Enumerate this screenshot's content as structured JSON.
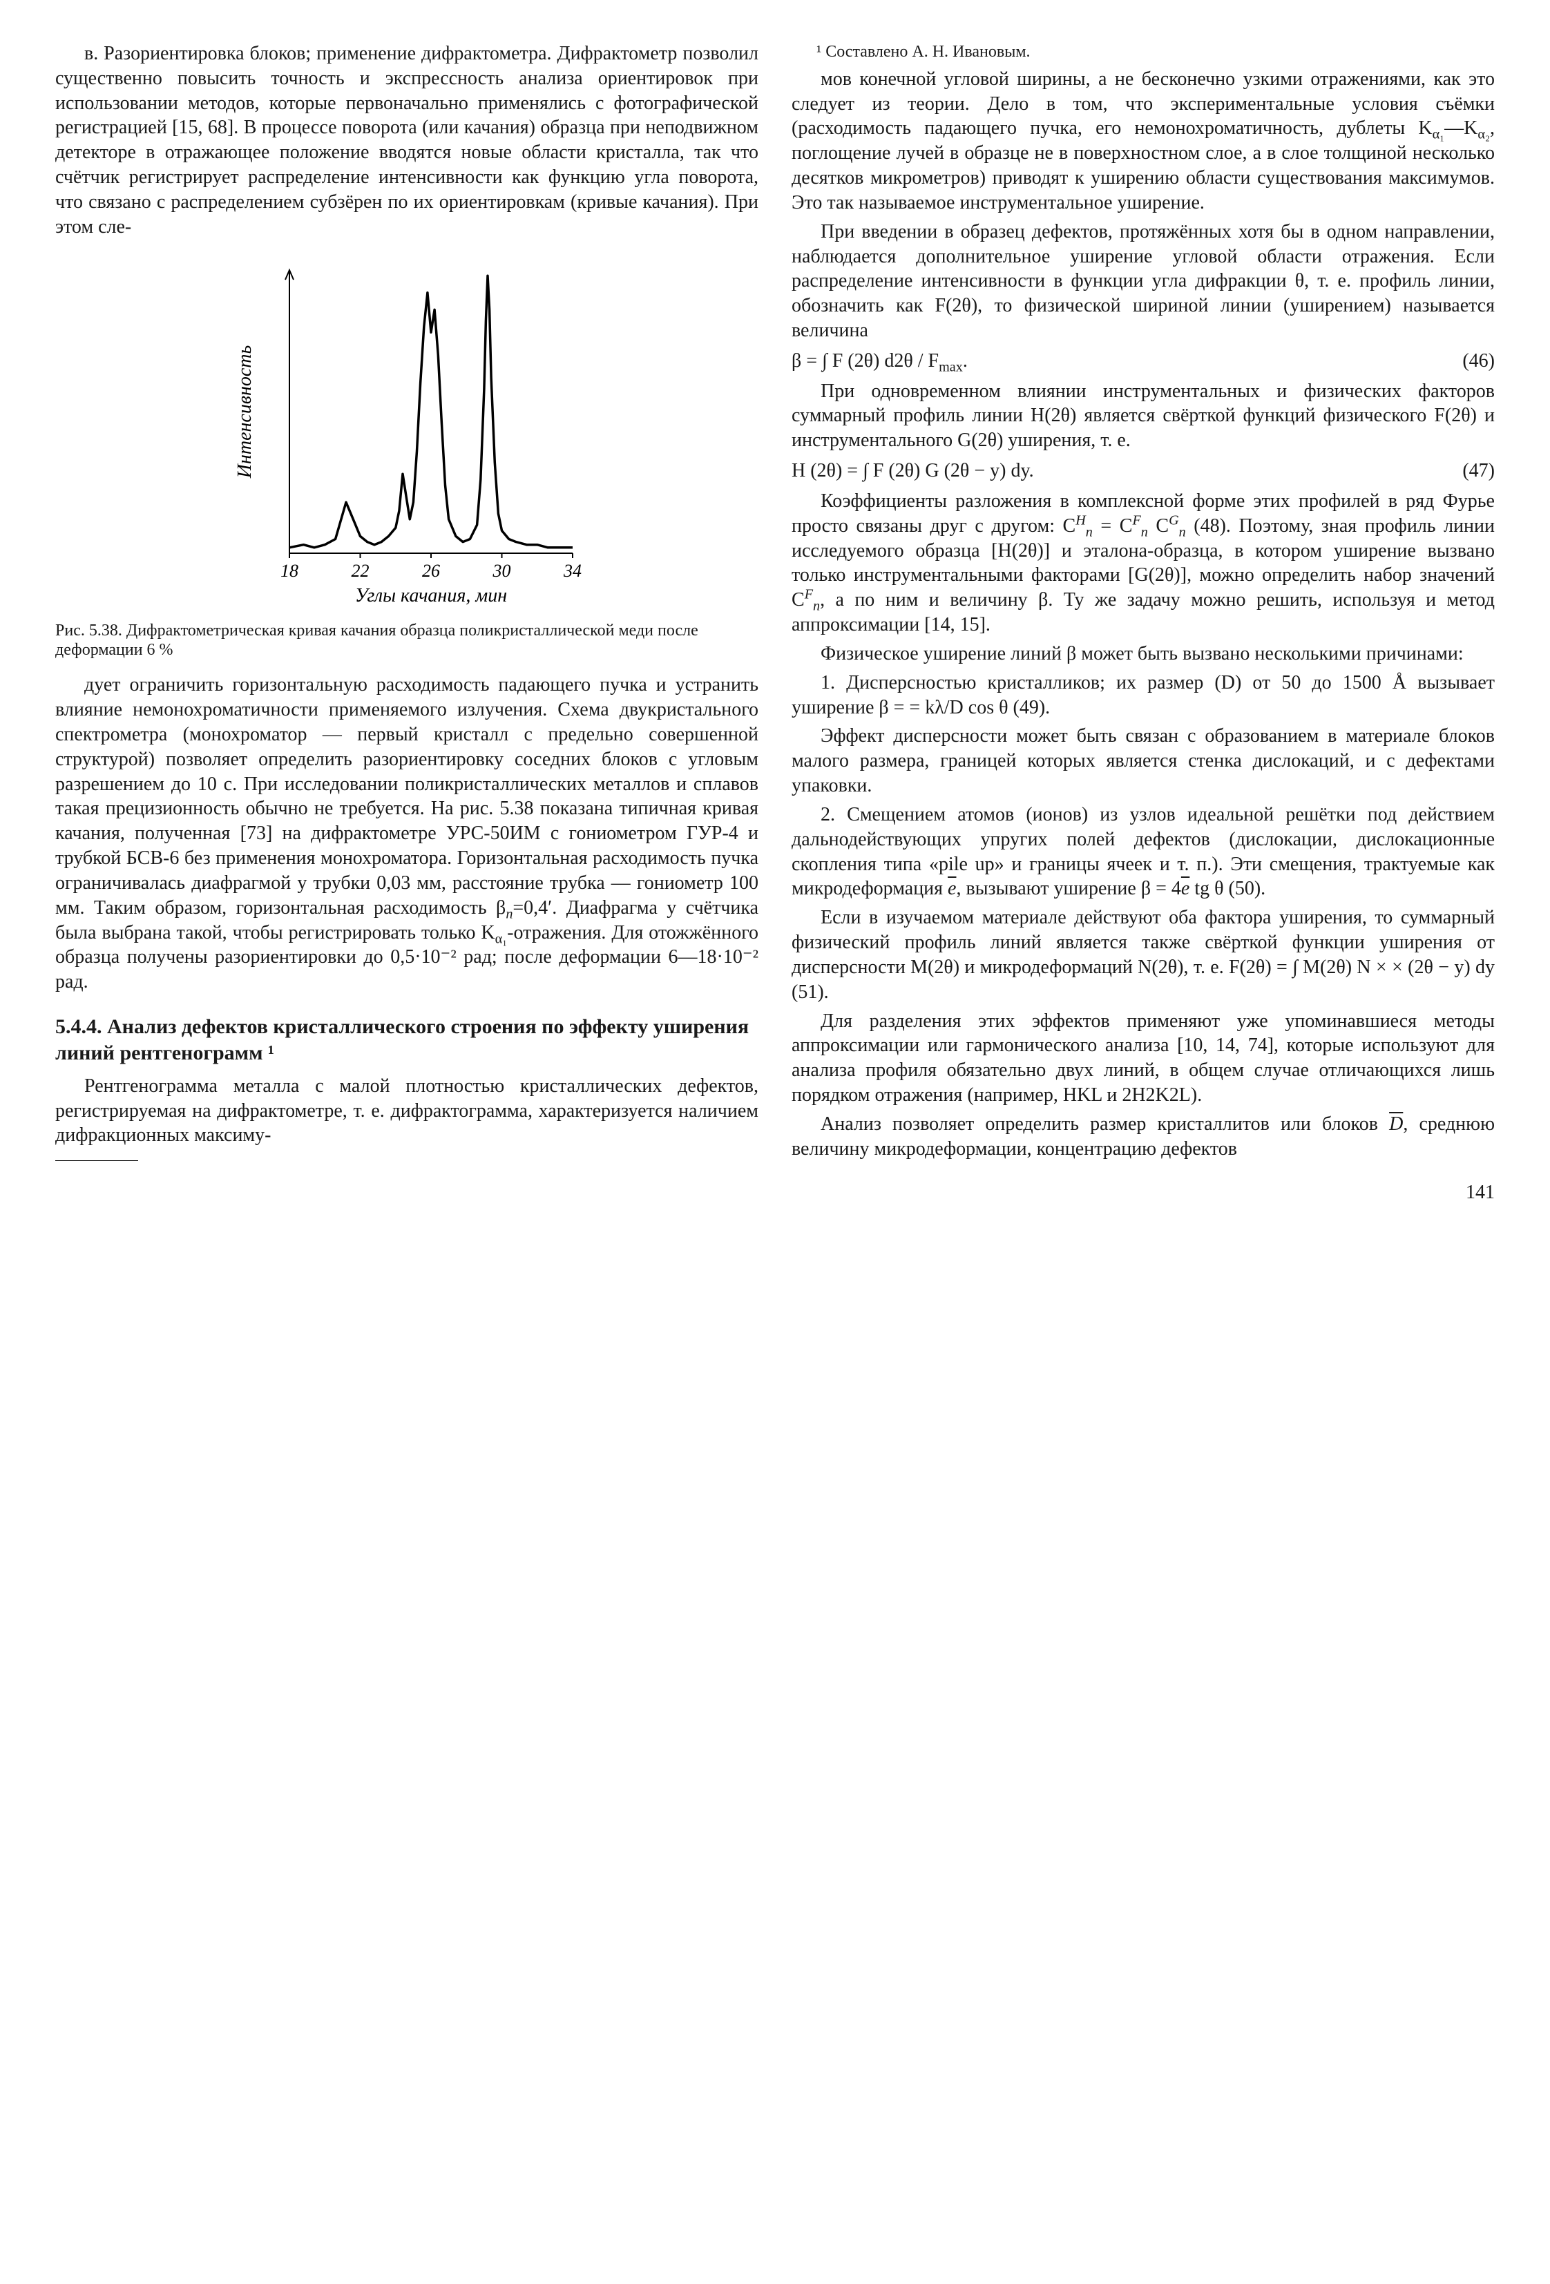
{
  "page_number": "141",
  "left_column": {
    "p1": "в. Разориентировка блоков; применение дифрактометра. Дифрактометр позволил существенно повысить точность и экспрессность анализа ориентировок при использовании методов, которые первоначально применялись с фотографической регистрацией [15, 68]. В процессе поворота (или качания) образца при неподвижном детекторе в отражающее положение вводятся новые области кристалла, так что счётчик регистрирует распределение интенсивности как функцию угла поворота, что связано с распределением субзёрен по их ориентировкам (кривые качания). При этом сле-",
    "figure": {
      "y_label": "Интенсивность",
      "x_label": "Углы качания, мин",
      "caption": "Рис. 5.38. Дифрактометрическая кривая качания образца поликристаллической меди после деформации 6 %",
      "x_ticks": [
        "18",
        "22",
        "26",
        "30",
        "34"
      ],
      "x_range": [
        18,
        34
      ],
      "y_range": [
        0,
        100
      ],
      "curve_points": [
        [
          18.0,
          2
        ],
        [
          18.8,
          3
        ],
        [
          19.4,
          2
        ],
        [
          20.0,
          3
        ],
        [
          20.6,
          5
        ],
        [
          21.2,
          18
        ],
        [
          21.6,
          12
        ],
        [
          22.0,
          6
        ],
        [
          22.4,
          4
        ],
        [
          22.8,
          3
        ],
        [
          23.2,
          4
        ],
        [
          23.6,
          6
        ],
        [
          24.0,
          9
        ],
        [
          24.2,
          15
        ],
        [
          24.4,
          28
        ],
        [
          24.6,
          20
        ],
        [
          24.8,
          12
        ],
        [
          25.0,
          18
        ],
        [
          25.2,
          36
        ],
        [
          25.4,
          60
        ],
        [
          25.6,
          80
        ],
        [
          25.8,
          92
        ],
        [
          26.0,
          78
        ],
        [
          26.2,
          86
        ],
        [
          26.4,
          70
        ],
        [
          26.6,
          46
        ],
        [
          26.8,
          24
        ],
        [
          27.0,
          12
        ],
        [
          27.4,
          6
        ],
        [
          27.8,
          4
        ],
        [
          28.2,
          5
        ],
        [
          28.6,
          10
        ],
        [
          28.8,
          26
        ],
        [
          29.0,
          58
        ],
        [
          29.1,
          82
        ],
        [
          29.2,
          98
        ],
        [
          29.3,
          86
        ],
        [
          29.4,
          62
        ],
        [
          29.6,
          32
        ],
        [
          29.8,
          14
        ],
        [
          30.0,
          8
        ],
        [
          30.4,
          5
        ],
        [
          30.8,
          4
        ],
        [
          31.4,
          3
        ],
        [
          32.0,
          3
        ],
        [
          32.6,
          2
        ],
        [
          33.4,
          2
        ],
        [
          34.0,
          2
        ]
      ],
      "stroke_width": 3.5,
      "stroke_color": "#000000",
      "axis_color": "#000000",
      "tick_len": 7
    },
    "p2": "дует ограничить горизонтальную расходимость падающего пучка и устранить влияние немонохроматичности применяемого излучения. Схема двукристального спектрометра (монохроматор — первый кристалл с предельно совершенной структурой) позволяет определить разориентировку соседних блоков с угловым разрешением до 10 с. При исследовании поликристаллических металлов и сплавов такая прецизионность обычно не требуется. На рис. 5.38 показана типичная кривая качания, полученная [73] на дифрактометре УРС-50ИМ с гониометром ГУР-4 и трубкой БСВ-6 без применения монохроматора. Горизонтальная расходимость пучка ограничивалась диафрагмой у трубки 0,03 мм, расстояние трубка — гониометр 100 мм. Таким образом, горизонтальная расходимость β",
    "p2b": "=0,4′. Диафрагма у счётчика была выбрана такой, чтобы регистрировать только K",
    "p2c": "-отражения. Для отожжённого образца получены разориентировки до 0,5·10⁻² рад; после деформации 6—18·10⁻² рад.",
    "section_title": "5.4.4. Анализ дефектов кристаллического строения по эффекту уширения линий рентгенограмм ¹",
    "p3": "Рентгенограмма металла с малой плотностью кристаллических дефектов, регистрируемая на дифрактометре, т. е. дифрактограмма, характеризуется наличием дифракционных максиму-",
    "footnote": "¹ Составлено А. Н. Ивановым."
  },
  "right_column": {
    "p1": "мов конечной угловой ширины, а не бесконечно узкими отражениями, как это следует из теории. Дело в том, что экспериментальные условия съёмки (расходимость падающего пучка, его немонохроматичность, дублеты K",
    "p1b": "—K",
    "p1c": ", поглощение лучей в образце не в поверхностном слое, а в слое толщиной несколько десятков микрометров) приводят к уширению области существования максимумов. Это так называемое инструментальное уширение.",
    "p2": "При введении в образец дефектов, протяжённых хотя бы в одном направлении, наблюдается дополнительное уширение угловой области отражения. Если распределение интенсивности в функции угла дифракции θ, т. е. профиль линии, обозначить как F(2θ), то физической шириной линии (уширением) называется величина",
    "eq46_lhs": "β = ∫ F (2θ) d2θ / F",
    "eq46_sub": "max",
    "eq46_tail": ".",
    "eq46_num": "(46)",
    "p3": "При одновременном влиянии инструментальных и физических факторов суммарный профиль линии H(2θ) является свёрткой функций физического F(2θ) и инструментального G(2θ) уширения, т. е.",
    "eq47_lhs": "H (2θ) = ∫ F (2θ) G (2θ − y) dy.",
    "eq47_num": "(47)",
    "p4a": "Коэффициенты разложения в комплексной форме этих профилей в ряд Фурье просто связаны друг с другом: C",
    "p4b": " = C",
    "p4c": " C",
    "p4d": " (48). Поэтому, зная профиль линии исследуемого образца [H(2θ)] и эталона-образца, в котором уширение вызвано только инструментальными факторами [G(2θ)], можно определить набор значений C",
    "p4e": ", а по ним и величину β. Ту же задачу можно решить, используя и метод аппроксимации [14, 15].",
    "p5": "Физическое уширение линий β может быть вызвано несколькими причинами:",
    "p6": "1. Дисперсностью кристалликов; их размер (D) от 50 до 1500 Å вызывает уширение β = = kλ/D cos θ (49).",
    "p7": "Эффект дисперсности может быть связан с образованием в материале блоков малого размера, границей которых является стенка дислокаций, и с дефектами упаковки.",
    "p8a": "2. Смещением атомов (ионов) из узлов идеальной решётки под действием дальнодействующих упругих полей дефектов (дислокации, дислокационные скопления типа «pile up» и границы ячеек и т. п.). Эти смещения, трактуемые как микродеформация ",
    "p8b": ", вызывают уширение β = 4",
    "p8c": " tg θ (50).",
    "p9": "Если в изучаемом материале действуют оба фактора уширения, то суммарный физический профиль линий является также свёрткой функции уширения от дисперсности M(2θ) и микродеформаций N(2θ), т. е. F(2θ) = ∫ M(2θ) N × × (2θ − y) dy (51).",
    "p10": "Для разделения этих эффектов применяют уже упоминавшиеся методы аппроксимации или гармонического анализа [10, 14, 74], которые используют для анализа профиля обязательно двух линий, в общем случае отличающихся лишь порядком отражения (например, HKL и 2H2K2L).",
    "p11a": "Анализ позволяет определить размер кристаллитов или блоков ",
    "p11b": ", среднюю величину микродеформации, концентрацию дефектов"
  }
}
